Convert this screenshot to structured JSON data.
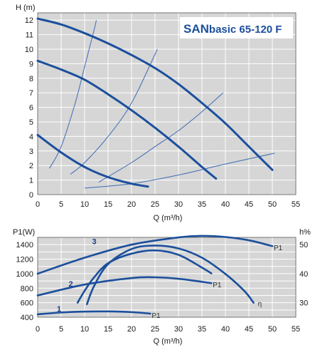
{
  "colors": {
    "plot_bg": "#d6d6d6",
    "grid": "#ffffff",
    "curve": "#1b4f9c",
    "thin": "#3d6bb5",
    "title": "#1b4f9c",
    "title_bg": "#ffffff"
  },
  "chart_data": [
    {
      "type": "line",
      "title_main": "SAN",
      "title_rest": "basic 65-120 F",
      "xlabel": "Q (m³/h)",
      "ylabel": "H (m)",
      "xlim": [
        0,
        55
      ],
      "ylim": [
        0,
        12.5
      ],
      "xticks": [
        "0",
        "5",
        "10",
        "15",
        "20",
        "25",
        "30",
        "35",
        "40",
        "45",
        "50",
        "55"
      ],
      "yticks": [
        "0",
        "1",
        "2",
        "3",
        "4",
        "5",
        "6",
        "7",
        "8",
        "9",
        "10",
        "11",
        "12"
      ],
      "grid": true,
      "series": [
        {
          "x": [
            0,
            5,
            10,
            15,
            20,
            25,
            30,
            35,
            40,
            45,
            50
          ],
          "y": [
            12.1,
            11.7,
            11.1,
            10.4,
            9.6,
            8.7,
            7.6,
            6.3,
            4.9,
            3.3,
            1.7
          ]
        },
        {
          "x": [
            0,
            5,
            10,
            15,
            20,
            25,
            30,
            35,
            38
          ],
          "y": [
            9.2,
            8.6,
            7.9,
            6.9,
            5.8,
            4.6,
            3.3,
            1.9,
            1.1
          ]
        },
        {
          "x": [
            0,
            5,
            10,
            15,
            20,
            23.5
          ],
          "y": [
            4.1,
            2.9,
            1.9,
            1.2,
            0.75,
            0.55
          ]
        }
      ],
      "system_curves": [
        {
          "x": [
            2.5,
            5,
            8,
            10,
            12,
            12.5
          ],
          "y": [
            1.8,
            3.3,
            6.3,
            8.8,
            11.3,
            12.0
          ]
        },
        {
          "x": [
            7,
            10,
            15,
            20,
            25.5
          ],
          "y": [
            1.4,
            2.2,
            4.0,
            6.3,
            10.0
          ]
        },
        {
          "x": [
            13,
            20,
            25,
            30,
            35,
            39.5
          ],
          "y": [
            0.85,
            2.2,
            3.3,
            4.4,
            5.7,
            7.0
          ]
        },
        {
          "x": [
            10,
            20,
            30,
            40,
            50.5
          ],
          "y": [
            0.45,
            0.75,
            1.35,
            2.1,
            2.85
          ]
        }
      ]
    },
    {
      "type": "line",
      "xlabel": "Q (m³/h)",
      "ylabel": "P1(W)",
      "y2label": "h%",
      "xlim": [
        0,
        55
      ],
      "ylim": [
        400,
        1500
      ],
      "y2lim": [
        25,
        52.5
      ],
      "xticks": [
        "0",
        "5",
        "10",
        "15",
        "20",
        "25",
        "30",
        "35",
        "40",
        "45",
        "50",
        "55"
      ],
      "yticks": [
        "400",
        "600",
        "800",
        "1000",
        "1200",
        "1400"
      ],
      "y2ticks": [
        "30",
        "40",
        "50"
      ],
      "grid": true,
      "power_curves": [
        {
          "label": "3",
          "end_label": "P1",
          "x": [
            0,
            10,
            20,
            30,
            35,
            40,
            45,
            50
          ],
          "y": [
            1000,
            1220,
            1400,
            1500,
            1520,
            1505,
            1460,
            1380
          ]
        },
        {
          "label": "2",
          "end_label": "P1",
          "x": [
            0,
            10,
            20,
            25,
            30,
            37
          ],
          "y": [
            700,
            850,
            940,
            950,
            930,
            870
          ]
        },
        {
          "label": "1",
          "end_label": "P1",
          "x": [
            0,
            5,
            10,
            15,
            20,
            24
          ],
          "y": [
            440,
            465,
            478,
            480,
            470,
            450
          ]
        }
      ],
      "efficiency_curves": [
        {
          "end_label": "η",
          "x": [
            10.5,
            12,
            15,
            20,
            25,
            30,
            35,
            40,
            44,
            46
          ],
          "y": [
            29.5,
            35.7,
            43.3,
            48.5,
            49.7,
            48.7,
            45.5,
            39.9,
            34.1,
            30.0
          ]
        },
        {
          "x": [
            8.5,
            10,
            12,
            15,
            20,
            25,
            30,
            35,
            37
          ],
          "y": [
            30.0,
            34.1,
            38.7,
            43.6,
            46.9,
            48.0,
            46.5,
            42.1,
            40.1
          ]
        }
      ]
    }
  ]
}
